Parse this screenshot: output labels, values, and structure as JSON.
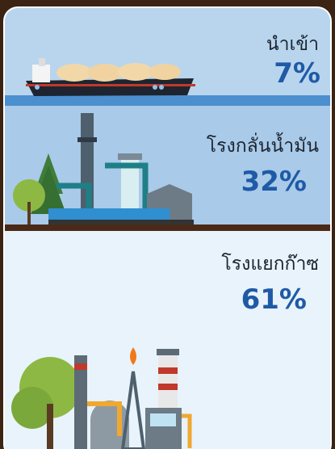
{
  "panels": [
    {
      "label": "นำเข้า",
      "share": "7%"
    },
    {
      "label": "โรงกลั่นน้ำมัน",
      "share": "32%"
    },
    {
      "label": "โรงแยกก๊าซ",
      "share": "61%"
    }
  ]
}
